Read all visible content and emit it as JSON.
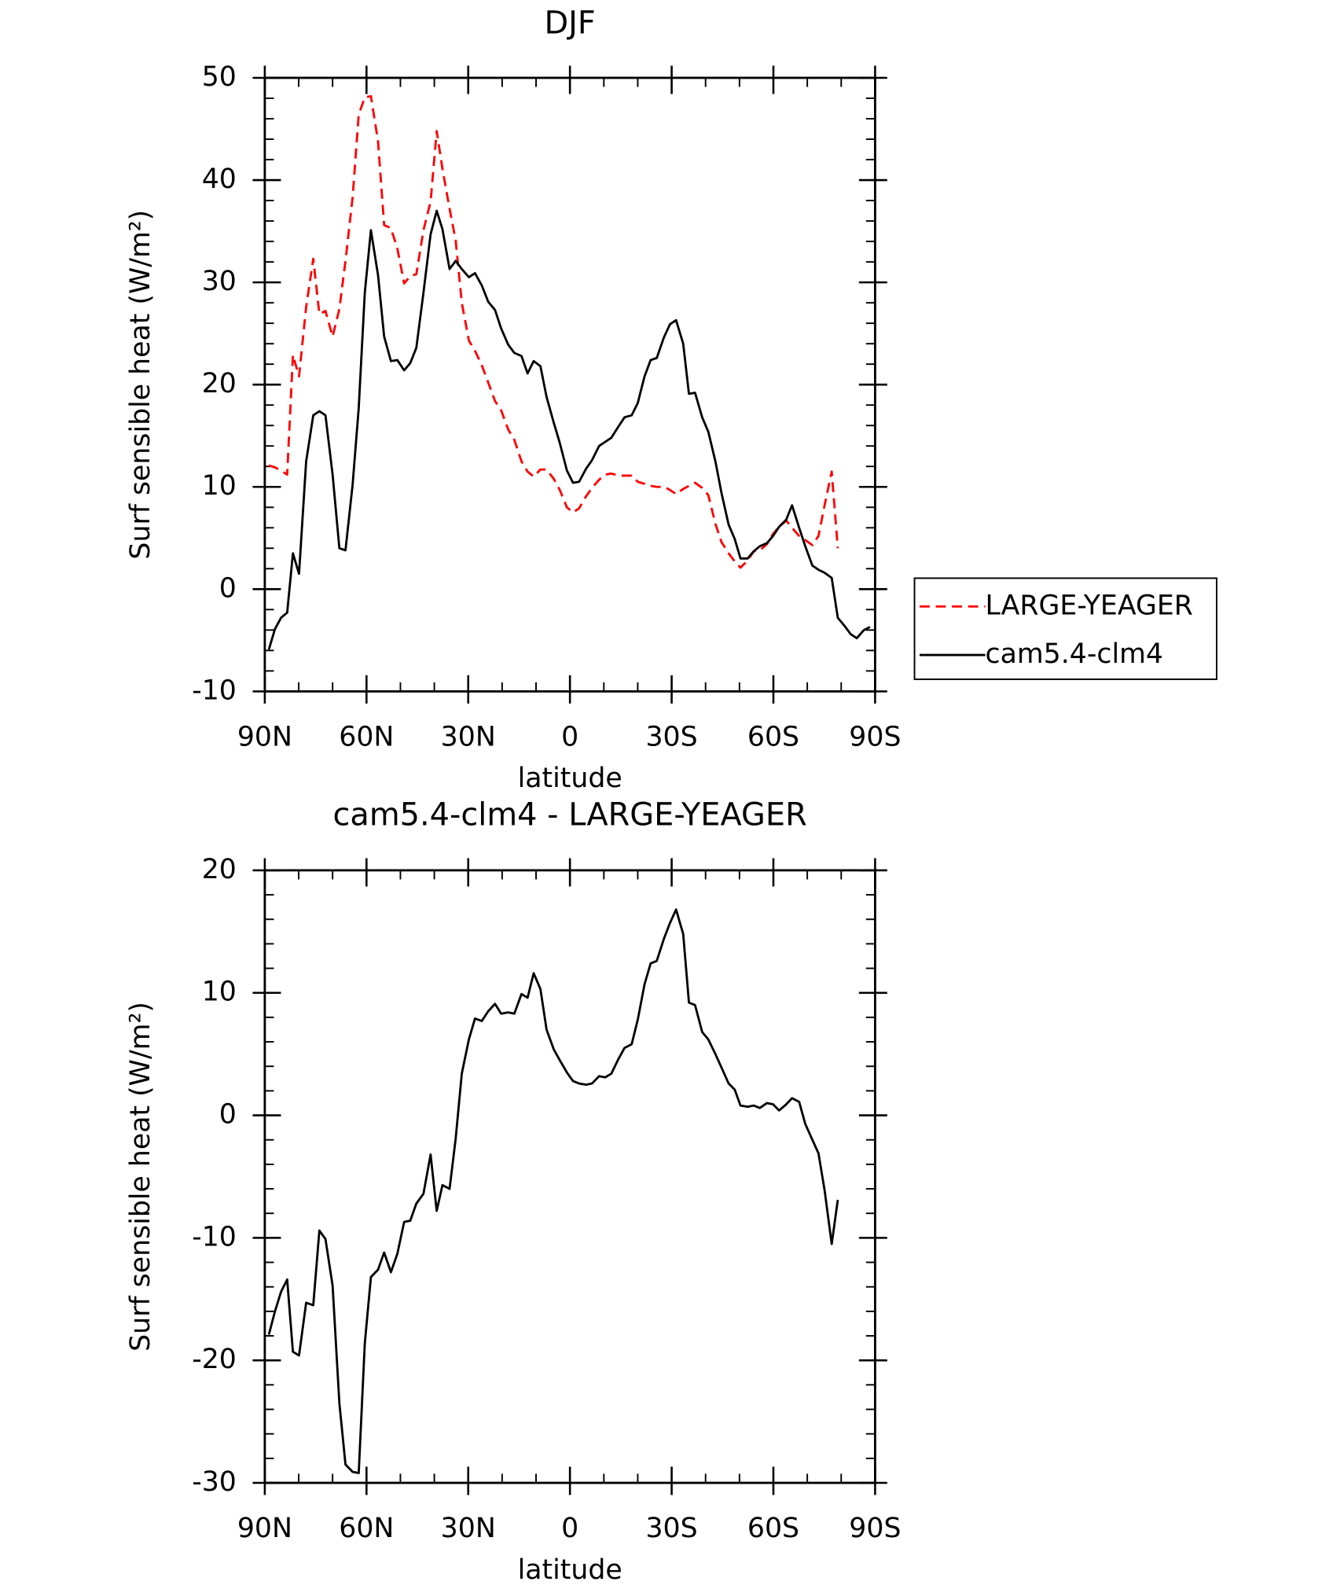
{
  "chart_data": [
    {
      "type": "line",
      "title": "DJF",
      "x_label": "latitude",
      "y_label": "Surf sensible heat (W/m²)",
      "xlim": [
        90,
        -90
      ],
      "xticks": [
        {
          "value": 90,
          "label": "90N"
        },
        {
          "value": 60,
          "label": "60N"
        },
        {
          "value": 30,
          "label": "30N"
        },
        0,
        {
          "value": -30,
          "label": "30S"
        },
        {
          "value": -60,
          "label": "60S"
        },
        {
          "value": -90,
          "label": "90S"
        }
      ],
      "ylim": [
        -10,
        50
      ],
      "yticks": [
        -10,
        0,
        10,
        20,
        30,
        40,
        50
      ],
      "legend": "right",
      "x": [
        88.8,
        87.0,
        85.2,
        83.4,
        81.7,
        79.9,
        77.8,
        75.7,
        73.9,
        72.1,
        70.0,
        68.0,
        66.2,
        64.1,
        62.3,
        60.5,
        58.7,
        56.6,
        54.8,
        52.8,
        50.9,
        48.9,
        47.1,
        45.3,
        43.2,
        41.1,
        39.3,
        37.6,
        35.5,
        33.7,
        31.9,
        29.8,
        28.0,
        26.0,
        24.1,
        22.1,
        20.3,
        18.2,
        16.4,
        14.3,
        12.5,
        10.7,
        8.7,
        6.9,
        4.8,
        3.0,
        0.9,
        -0.9,
        -2.7,
        -4.8,
        -6.5,
        -8.6,
        -10.4,
        -12.2,
        -14.3,
        -16.1,
        -18.2,
        -20.0,
        -22.0,
        -23.8,
        -25.6,
        -27.7,
        -29.5,
        -31.3,
        -33.4,
        -35.1,
        -36.9,
        -39.0,
        -40.8,
        -42.9,
        -44.7,
        -46.8,
        -48.6,
        -50.3,
        -52.4,
        -54.2,
        -56.0,
        -58.1,
        -59.9,
        -61.7,
        -63.8,
        -65.5,
        -67.6,
        -69.4,
        -71.5,
        -73.3,
        -75.1,
        -77.2,
        -79.0,
        -81.0,
        -82.8,
        -84.6,
        -86.7,
        -88.5
      ],
      "series": [
        {
          "name": "LARGE-YEAGER",
          "color": "#ff0000",
          "dashed": true,
          "values": [
            12.1,
            11.9,
            11.6,
            11.2,
            22.9,
            20.8,
            27.6,
            32.3,
            26.9,
            27.2,
            24.7,
            27.4,
            32.1,
            38.3,
            46.4,
            48.1,
            48.2,
            43.8,
            35.6,
            35.3,
            33.3,
            29.9,
            30.6,
            30.8,
            35.1,
            37.9,
            44.8,
            41.1,
            37.2,
            34.1,
            28.0,
            24.3,
            23.3,
            21.9,
            20.2,
            18.4,
            17.5,
            15.6,
            14.6,
            12.5,
            11.5,
            11.0,
            11.7,
            11.7,
            10.8,
            9.7,
            8.0,
            7.5,
            7.9,
            9.1,
            9.9,
            10.7,
            11.2,
            11.3,
            11.1,
            11.1,
            11.1,
            10.5,
            10.3,
            10.1,
            10.0,
            10.0,
            9.7,
            9.3,
            9.8,
            10.1,
            10.4,
            9.9,
            9.2,
            6.4,
            4.6,
            3.5,
            2.7,
            2.1,
            2.8,
            3.7,
            3.8,
            4.4,
            5.4,
            6.1,
            6.7,
            6.0,
            5.2,
            4.8,
            4.3,
            5.2,
            8.2,
            11.5,
            4.0,
            null,
            null,
            null,
            null,
            null
          ]
        },
        {
          "name": "cam5.4-clm4",
          "color": "#000000",
          "dashed": false,
          "values": [
            -5.9,
            -3.9,
            -2.8,
            -2.3,
            3.5,
            1.5,
            12.5,
            17.0,
            17.4,
            17.0,
            11.2,
            4.0,
            3.8,
            10.2,
            17.7,
            29.0,
            35.1,
            30.7,
            24.7,
            22.3,
            22.4,
            21.4,
            22.1,
            23.6,
            29.0,
            34.7,
            37.0,
            35.2,
            31.3,
            32.1,
            31.3,
            30.5,
            30.9,
            29.7,
            28.1,
            27.3,
            25.5,
            23.9,
            23.1,
            22.8,
            21.1,
            22.3,
            21.8,
            18.8,
            16.3,
            14.3,
            11.6,
            10.4,
            10.5,
            11.8,
            12.6,
            14.0,
            14.4,
            14.8,
            15.9,
            16.8,
            17.0,
            18.2,
            20.8,
            22.4,
            22.6,
            24.6,
            25.9,
            26.3,
            24.0,
            19.1,
            19.2,
            16.8,
            15.4,
            12.5,
            9.4,
            6.3,
            4.9,
            3.0,
            3.0,
            3.7,
            4.2,
            4.5,
            5.2,
            6.1,
            6.8,
            8.2,
            6.0,
            4.2,
            2.3,
            1.9,
            1.6,
            1.1,
            -2.8,
            -3.6,
            -4.4,
            -4.8,
            -4.0,
            -3.7
          ]
        }
      ]
    },
    {
      "type": "line",
      "title": "cam5.4-clm4 - LARGE-YEAGER",
      "x_label": "latitude",
      "y_label": "Surf sensible heat (W/m²)",
      "xlim": [
        90,
        -90
      ],
      "xticks": [
        {
          "value": 90,
          "label": "90N"
        },
        {
          "value": 60,
          "label": "60N"
        },
        {
          "value": 30,
          "label": "30N"
        },
        0,
        {
          "value": -30,
          "label": "30S"
        },
        {
          "value": -60,
          "label": "60S"
        },
        {
          "value": -90,
          "label": "90S"
        }
      ],
      "ylim": [
        -30,
        20
      ],
      "yticks": [
        -30,
        -20,
        -10,
        0,
        10,
        20
      ],
      "x": [
        88.8,
        87.0,
        85.2,
        83.4,
        81.7,
        79.9,
        77.8,
        75.7,
        73.9,
        72.1,
        70.0,
        68.0,
        66.2,
        64.1,
        62.3,
        60.5,
        58.7,
        56.6,
        54.8,
        52.8,
        50.9,
        48.9,
        47.1,
        45.3,
        43.2,
        41.1,
        39.3,
        37.6,
        35.5,
        33.7,
        31.9,
        29.8,
        28.0,
        26.0,
        24.1,
        22.1,
        20.3,
        18.2,
        16.4,
        14.3,
        12.5,
        10.7,
        8.7,
        6.9,
        4.8,
        3.0,
        0.9,
        -0.9,
        -2.7,
        -4.8,
        -6.5,
        -8.6,
        -10.4,
        -12.2,
        -14.3,
        -16.1,
        -18.2,
        -20.0,
        -22.0,
        -23.8,
        -25.6,
        -27.7,
        -29.5,
        -31.3,
        -33.4,
        -35.1,
        -36.9,
        -39.0,
        -40.8,
        -42.9,
        -44.7,
        -46.8,
        -48.6,
        -50.3,
        -52.4,
        -54.2,
        -56.0,
        -58.1,
        -59.9,
        -61.7,
        -63.8,
        -65.5,
        -67.6,
        -69.4,
        -71.5,
        -73.3,
        -75.1,
        -77.2,
        -79.0,
        -81.0,
        -82.8,
        -84.6,
        -86.7,
        -88.5
      ],
      "series": [
        {
          "color": "#000000",
          "dashed": false,
          "values": [
            -17.9,
            -16.0,
            -14.4,
            -13.4,
            -19.3,
            -19.6,
            -15.3,
            -15.5,
            -9.4,
            -10.1,
            -13.9,
            -23.5,
            -28.5,
            -29.1,
            -29.2,
            -18.6,
            -13.2,
            -12.6,
            -11.2,
            -12.8,
            -11.3,
            -8.7,
            -8.6,
            -7.2,
            -6.4,
            -3.2,
            -7.8,
            -5.7,
            -6.0,
            -1.9,
            3.4,
            6.2,
            7.9,
            7.7,
            8.5,
            9.1,
            8.3,
            8.4,
            8.3,
            9.9,
            9.6,
            11.6,
            10.3,
            7.0,
            5.4,
            4.5,
            3.5,
            2.8,
            2.6,
            2.5,
            2.6,
            3.2,
            3.1,
            3.4,
            4.6,
            5.5,
            5.8,
            7.8,
            10.7,
            12.4,
            12.6,
            14.4,
            15.7,
            16.8,
            14.8,
            9.2,
            9.0,
            6.8,
            6.2,
            5.0,
            3.9,
            2.6,
            2.1,
            0.8,
            0.7,
            0.8,
            0.6,
            1.0,
            0.9,
            0.4,
            0.9,
            1.4,
            1.1,
            -0.7,
            -2.0,
            -3.1,
            -6.1,
            -10.5,
            -6.9,
            null,
            null,
            null,
            null,
            null
          ]
        }
      ]
    }
  ]
}
